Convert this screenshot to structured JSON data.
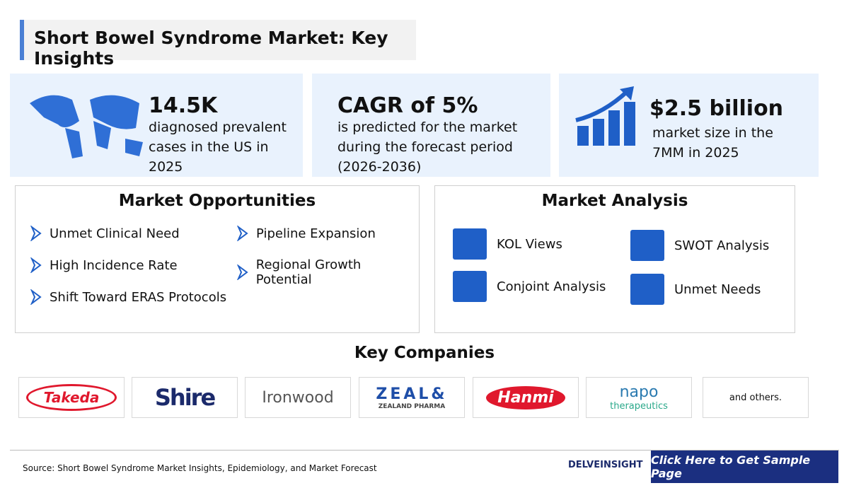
{
  "header": {
    "title": "Short Bowel Syndrome Market: Key Insights"
  },
  "stats": [
    {
      "value": "14.5K",
      "text": "diagnosed prevalent cases in the US in 2025"
    },
    {
      "value": "CAGR of 5%",
      "text": "is predicted for the market during the forecast period (2026-2036)"
    },
    {
      "value": "$2.5 billion",
      "text": "market size in the 7MM in 2025"
    }
  ],
  "opportunities": {
    "title": "Market Opportunities",
    "items": [
      "Unmet Clinical Need",
      "Pipeline Expansion",
      "High Incidence Rate",
      "Regional Growth Potential",
      "Shift Toward ERAS Protocols"
    ]
  },
  "analysis": {
    "title": "Market Analysis",
    "items": [
      "KOL Views",
      "SWOT Analysis",
      "Conjoint Analysis",
      "Unmet Needs"
    ]
  },
  "companies": {
    "title": "Key Companies",
    "logos": [
      "Takeda",
      "Shire",
      "Ironwood",
      "ZEAL&",
      "ZEALAND PHARMA",
      "Hanmi",
      "napo",
      "therapeutics",
      "and others."
    ]
  },
  "footer": {
    "source": "Source: Short Bowel Syndrome Market Insights, Epidemiology, and Market Forecast",
    "brand": "DELVEINSIGHT",
    "button": "Click Here to Get Sample Page"
  }
}
